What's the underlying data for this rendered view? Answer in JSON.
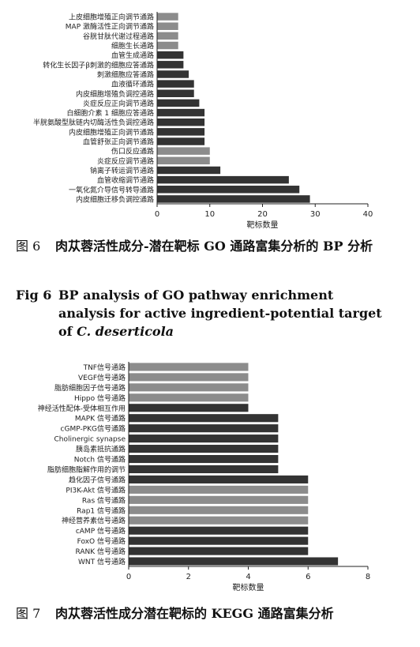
{
  "chart_data": [
    {
      "type": "bar",
      "orientation": "horizontal",
      "categories": [
        "上皮细胞增殖正向调节通路",
        "MAP 激酶活性正向调节通路",
        "谷胱甘肽代谢过程通路",
        "细胞生长通路",
        "血管生成通路",
        "转化生长因子β刺激的细胞应答通路",
        "刺激细胞应答通路",
        "血液循环通路",
        "内皮细胞增殖负调控通路",
        "炎症反应正向调节通路",
        "白细胞介素 1 细胞应答通路",
        "半胱氨酸型肽链内切酶活性负调控通路",
        "内皮细胞增殖正向调节通路",
        "血管舒张正向调节通路",
        "伤口反应通路",
        "炎症反应调节通路",
        "钠离子转运调节通路",
        "血管收缩调节通路",
        "一氧化氮介导信号转导通路",
        "内皮细胞迁移负调控通路"
      ],
      "values": [
        4,
        4,
        4,
        4,
        5,
        5,
        6,
        7,
        7,
        8,
        9,
        9,
        9,
        9,
        10,
        10,
        12,
        25,
        27,
        29
      ],
      "colors": [
        "#8c8c8c",
        "#8c8c8c",
        "#8c8c8c",
        "#8c8c8c",
        "#333333",
        "#333333",
        "#333333",
        "#333333",
        "#333333",
        "#333333",
        "#333333",
        "#333333",
        "#333333",
        "#333333",
        "#8c8c8c",
        "#8c8c8c",
        "#333333",
        "#333333",
        "#333333",
        "#333333"
      ],
      "xlabel": "靶标数量",
      "ylabel": "",
      "xlim": [
        0,
        40
      ],
      "xticks": [
        0,
        10,
        20,
        30,
        40
      ],
      "grid": false
    },
    {
      "type": "bar",
      "orientation": "horizontal",
      "categories": [
        "TNF信号通路",
        "VEGF信号通路",
        "脂肪细胞因子信号通路",
        "Hippo 信号通路",
        "神经活性配体-受体相互作用",
        "MAPK 信号通路",
        "cGMP-PKG信号通路",
        "Cholinergic synapse",
        "胰岛素抵抗通路",
        "Notch 信号通路",
        "脂肪细胞脂解作用的调节",
        "趋化因子信号通路",
        "PI3K-Akt 信号通路",
        "Ras 信号通路",
        "Rap1 信号通路",
        "神经营养素信号通路",
        "cAMP 信号通路",
        "FoxO 信号通路",
        "RANK 信号通路",
        "WNT 信号通路"
      ],
      "values": [
        4,
        4,
        4,
        4,
        4,
        5,
        5,
        5,
        5,
        5,
        5,
        6,
        6,
        6,
        6,
        6,
        6,
        6,
        6,
        7
      ],
      "colors": [
        "#8c8c8c",
        "#8c8c8c",
        "#8c8c8c",
        "#8c8c8c",
        "#333333",
        "#333333",
        "#333333",
        "#333333",
        "#333333",
        "#333333",
        "#333333",
        "#333333",
        "#8c8c8c",
        "#8c8c8c",
        "#8c8c8c",
        "#8c8c8c",
        "#333333",
        "#333333",
        "#333333",
        "#333333"
      ],
      "xlabel": "靶标数量",
      "ylabel": "",
      "xlim": [
        0,
        8
      ],
      "xticks": [
        0,
        2,
        4,
        6,
        8
      ],
      "grid": false
    }
  ],
  "captions": {
    "fig6": {
      "num": "图 6",
      "title": "肉苁蓉活性成分-潜在靶标 GO 通路富集分析的 BP 分析"
    },
    "fig6_en": {
      "num": "Fig 6",
      "title": "BP analysis of GO pathway enrichment analysis for active ingredient-potential target of",
      "species": "C. deserticola"
    },
    "fig7": {
      "num": "图 7",
      "title": "肉苁蓉活性成分潜在靶标的 KEGG 通路富集分析"
    }
  }
}
